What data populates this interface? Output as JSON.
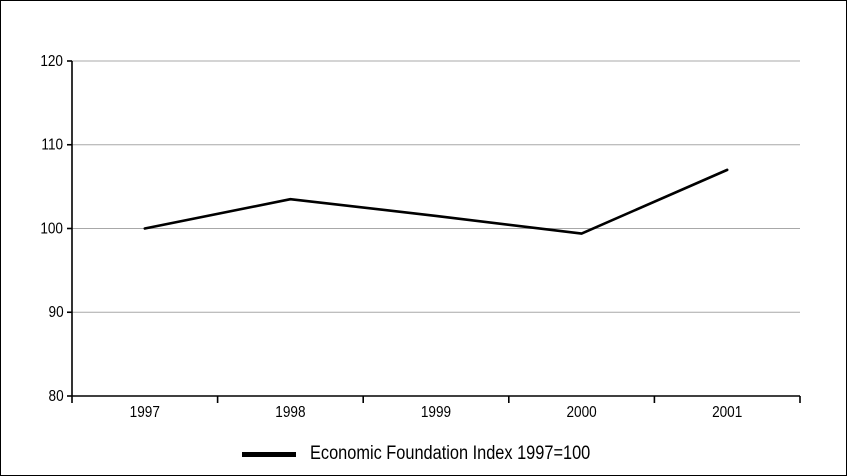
{
  "chart_data": {
    "type": "line",
    "title": "",
    "xlabel": "",
    "ylabel": "",
    "categories": [
      "1997",
      "1998",
      "1999",
      "2000",
      "2001"
    ],
    "ylim": [
      80,
      120
    ],
    "yticks": [
      80,
      90,
      100,
      110,
      120
    ],
    "grid": true,
    "legend_position": "bottom",
    "series": [
      {
        "name": "Economic Foundation Index 1997=100",
        "values": [
          100,
          103.5,
          101.5,
          99.4,
          107
        ],
        "color": "#000000"
      }
    ]
  }
}
